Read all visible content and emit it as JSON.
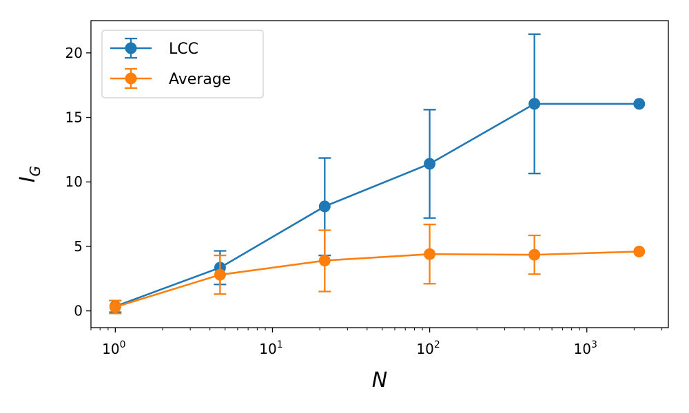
{
  "chart_data": {
    "type": "line",
    "xscale": "log",
    "xlim": [
      0.7,
      3300
    ],
    "ylim": [
      -1.3,
      22.5
    ],
    "xlabel": "N",
    "ylabel": "I",
    "ylabel_sub": "G",
    "y_ticks": [
      0,
      5,
      10,
      15,
      20
    ],
    "x_ticks": [
      {
        "value": 1,
        "base": "10",
        "exp": "0"
      },
      {
        "value": 10,
        "base": "10",
        "exp": "1"
      },
      {
        "value": 100,
        "base": "10",
        "exp": "2"
      },
      {
        "value": 1000,
        "base": "10",
        "exp": "3"
      }
    ],
    "legend_position": "top-left",
    "grid": false,
    "series": [
      {
        "name": "LCC",
        "color": "#1f77b4",
        "x": [
          1.0,
          4.64,
          21.5,
          100,
          464,
          2154
        ],
        "y": [
          0.35,
          3.35,
          8.1,
          11.4,
          16.05,
          16.05
        ],
        "err_lo": [
          0.45,
          1.3,
          3.8,
          4.2,
          5.4,
          0
        ],
        "err_hi": [
          0.45,
          1.3,
          3.75,
          4.2,
          5.4,
          0
        ]
      },
      {
        "name": "Average",
        "color": "#ff7f0e",
        "x": [
          1.0,
          4.64,
          21.5,
          100,
          464,
          2154
        ],
        "y": [
          0.3,
          2.8,
          3.9,
          4.4,
          4.35,
          4.6
        ],
        "err_lo": [
          0.5,
          1.5,
          2.4,
          2.3,
          1.5,
          0
        ],
        "err_hi": [
          0.5,
          1.5,
          2.35,
          2.3,
          1.5,
          0
        ]
      }
    ]
  }
}
